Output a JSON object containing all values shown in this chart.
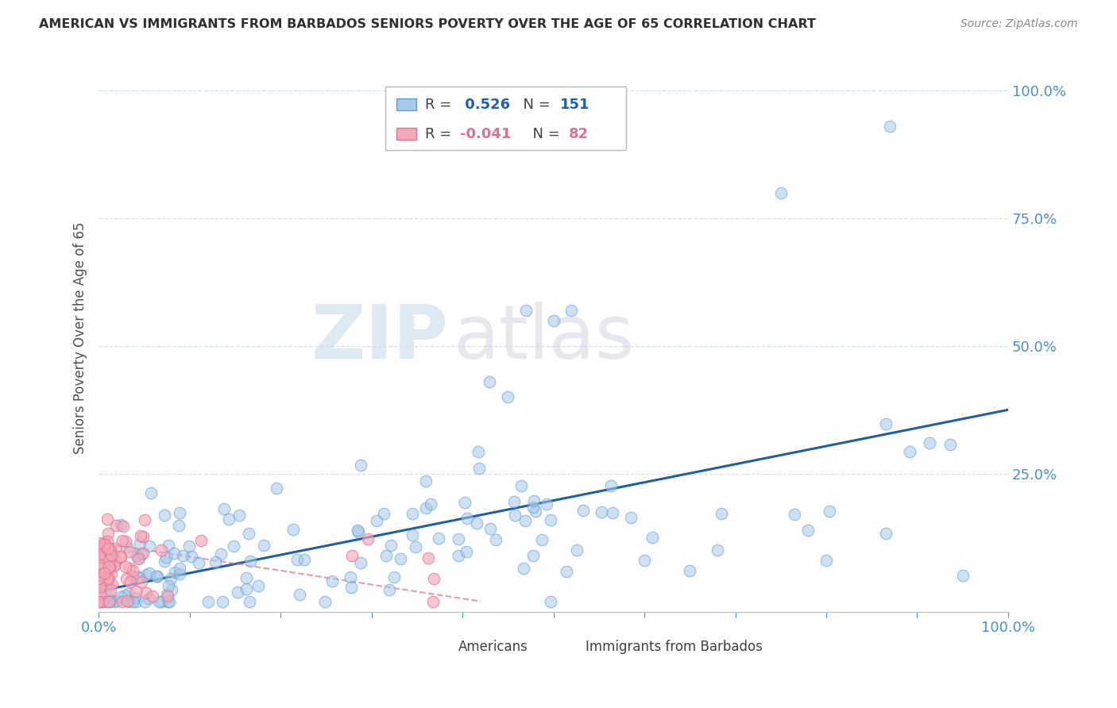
{
  "title": "AMERICAN VS IMMIGRANTS FROM BARBADOS SENIORS POVERTY OVER THE AGE OF 65 CORRELATION CHART",
  "source": "Source: ZipAtlas.com",
  "ylabel": "Seniors Poverty Over the Age of 65",
  "watermark_zip": "ZIP",
  "watermark_atlas": "atlas",
  "r_american": 0.526,
  "n_american": 151,
  "r_barbados": -0.041,
  "n_barbados": 82,
  "bg_color": "#ffffff",
  "blue_fill": "#a8c8e8",
  "blue_edge": "#5a9fd4",
  "pink_fill": "#f4a8b8",
  "pink_edge": "#e07090",
  "blue_line_color": "#2060a0",
  "pink_line_color": "#e07090",
  "grid_color": "#c8d8e8",
  "title_color": "#303030",
  "axis_label_color": "#505050",
  "tick_label_color": "#4a90c8",
  "xlim": [
    0.0,
    1.0
  ],
  "ylim": [
    -0.02,
    1.05
  ],
  "ytick_positions": [
    0.25,
    0.5,
    0.75,
    1.0
  ],
  "ytick_labels": [
    "25.0%",
    "50.0%",
    "75.0%",
    "100.0%"
  ]
}
